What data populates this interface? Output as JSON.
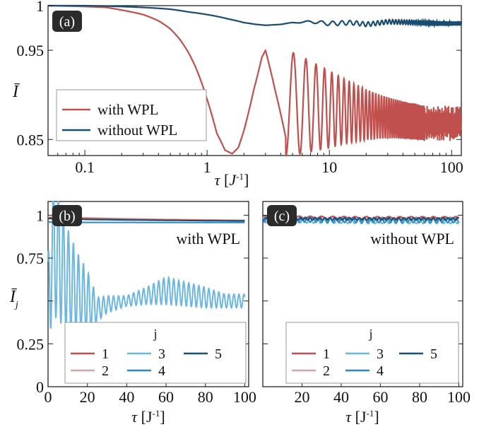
{
  "colors": {
    "with_wpl": "#c0504d",
    "without_wpl": "#1a4d72",
    "j1": "#c0504d",
    "j2": "#d4a7a5",
    "j3": "#6bb7e0",
    "j4": "#2d89c4",
    "j5": "#1a4d72"
  },
  "chart_data": [
    {
      "panel": "(a)",
      "type": "line",
      "xscale": "log",
      "xlim": [
        0.05,
        120
      ],
      "ylim": [
        0.832,
        1.0
      ],
      "xticks": [
        0.1,
        1,
        10,
        100
      ],
      "xtick_labels": [
        "0.1",
        "1",
        "10",
        "100"
      ],
      "yticks": [
        0.85,
        0.95,
        1
      ],
      "ytick_labels": [
        "0.85",
        "0.95",
        "1"
      ],
      "xlabel": "τ [J⁻¹]",
      "ylabel": "Ī",
      "legend": {
        "placement": "bottom-left",
        "entries": [
          "with WPL",
          "without WPL"
        ]
      },
      "series": [
        {
          "name": "with WPL",
          "x": [
            0.05,
            0.1,
            0.15,
            0.2,
            0.3,
            0.4,
            0.5,
            0.6,
            0.7,
            0.8,
            0.9,
            1.0,
            1.1,
            1.2,
            1.4,
            1.6,
            1.8,
            2.0,
            2.4,
            2.8,
            3.0,
            3.4,
            3.8,
            4.2,
            4.6,
            5.0,
            5.5,
            6.0,
            6.5,
            7.0,
            8.0,
            9.0,
            10,
            12,
            15,
            20,
            30,
            50,
            80,
            100,
            120
          ],
          "y": [
            1.0,
            0.999,
            0.998,
            0.995,
            0.99,
            0.983,
            0.974,
            0.962,
            0.948,
            0.932,
            0.914,
            0.895,
            0.876,
            0.857,
            0.838,
            0.834,
            0.841,
            0.86,
            0.905,
            0.942,
            0.95,
            0.935,
            0.905,
            0.87,
            0.852,
            0.87,
            0.91,
            0.93,
            0.91,
            0.875,
            0.92,
            0.875,
            0.91,
            0.878,
            0.9,
            0.88,
            0.875,
            0.868,
            0.87,
            0.86,
            0.857
          ],
          "oscillation_note": "damped oscillation, frequency increasing on log axis"
        },
        {
          "name": "without WPL",
          "x": [
            0.05,
            0.1,
            0.2,
            0.3,
            0.5,
            0.7,
            1.0,
            1.5,
            2.0,
            2.5,
            3.0,
            4.0,
            5.0,
            7.0,
            10,
            15,
            20,
            30,
            50,
            80,
            120
          ],
          "y": [
            1.0,
            1.0,
            0.999,
            0.998,
            0.996,
            0.993,
            0.99,
            0.985,
            0.981,
            0.979,
            0.978,
            0.979,
            0.981,
            0.982,
            0.98,
            0.981,
            0.979,
            0.982,
            0.981,
            0.98,
            0.98
          ]
        }
      ]
    },
    {
      "panel": "(b)",
      "type": "line",
      "title": "with WPL",
      "xlim": [
        0,
        102
      ],
      "ylim": [
        0,
        1.08
      ],
      "xticks": [
        0,
        20,
        40,
        60,
        80,
        100
      ],
      "xtick_labels": [
        "0",
        "20",
        "40",
        "60",
        "80",
        "100"
      ],
      "yticks": [
        0,
        0.25,
        0.75,
        1
      ],
      "ytick_labels": [
        "0",
        "0.25",
        "0.75",
        "1"
      ],
      "xlabel": "τ [J⁻¹]",
      "ylabel": "Ī",
      "ylabel_sub": "j",
      "legend": {
        "placement": "bottom",
        "title": "j",
        "entries": [
          "1",
          "2",
          "3",
          "4",
          "5"
        ]
      },
      "series": [
        {
          "name": "1",
          "x": [
            0,
            20,
            40,
            60,
            80,
            100
          ],
          "y": [
            0.985,
            0.98,
            0.975,
            0.972,
            0.97,
            0.968
          ]
        },
        {
          "name": "2",
          "x": [
            0,
            20,
            40,
            60,
            80,
            100
          ],
          "y": [
            0.99,
            0.985,
            0.98,
            0.976,
            0.973,
            0.971
          ]
        },
        {
          "name": "3",
          "oscillation_note": "large oscillation",
          "x": [
            0,
            2,
            5,
            10,
            15,
            20,
            25,
            30,
            40,
            50,
            60,
            70,
            80,
            90,
            100
          ],
          "y": [
            0.45,
            0.8,
            0.75,
            0.62,
            0.55,
            0.5,
            0.45,
            0.48,
            0.5,
            0.53,
            0.56,
            0.54,
            0.52,
            0.5,
            0.5
          ],
          "amplitude": [
            0.3,
            0.38,
            0.36,
            0.3,
            0.23,
            0.18,
            0.07,
            0.05,
            0.03,
            0.05,
            0.08,
            0.07,
            0.06,
            0.04,
            0.04
          ]
        },
        {
          "name": "4",
          "x": [
            0,
            20,
            40,
            60,
            80,
            100
          ],
          "y": [
            0.96,
            0.958,
            0.958,
            0.957,
            0.957,
            0.957
          ]
        },
        {
          "name": "5",
          "x": [
            0,
            20,
            40,
            60,
            80,
            100
          ],
          "y": [
            0.98,
            0.975,
            0.972,
            0.97,
            0.968,
            0.966
          ]
        }
      ]
    },
    {
      "panel": "(c)",
      "type": "line",
      "title": "without WPL",
      "xlim": [
        0,
        102
      ],
      "ylim": [
        0,
        1.08
      ],
      "xticks": [
        20,
        40,
        60,
        80,
        100
      ],
      "xtick_labels": [
        "20",
        "40",
        "60",
        "80",
        "100"
      ],
      "xlabel": "τ [J⁻¹]",
      "legend": {
        "placement": "bottom",
        "title": "j",
        "entries": [
          "1",
          "2",
          "3",
          "4",
          "5"
        ]
      },
      "series": [
        {
          "name": "1",
          "x": [
            0,
            50,
            100
          ],
          "y": [
            0.99,
            0.985,
            0.985
          ]
        },
        {
          "name": "2",
          "x": [
            0,
            50,
            100
          ],
          "y": [
            0.985,
            0.982,
            0.982
          ]
        },
        {
          "name": "3",
          "x": [
            0,
            50,
            100
          ],
          "y": [
            0.97,
            0.965,
            0.965
          ]
        },
        {
          "name": "4",
          "x": [
            0,
            50,
            100
          ],
          "y": [
            0.975,
            0.97,
            0.97
          ]
        },
        {
          "name": "5",
          "x": [
            0,
            50,
            100
          ],
          "y": [
            0.98,
            0.978,
            0.978
          ]
        }
      ]
    }
  ]
}
